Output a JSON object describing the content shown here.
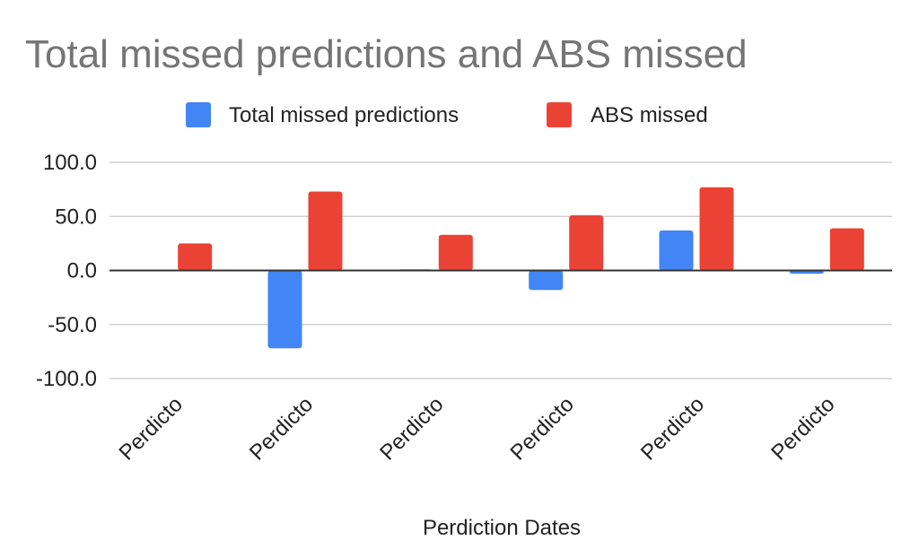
{
  "chart_data": {
    "type": "bar",
    "title": "Total missed predictions and ABS missed",
    "xlabel": "Perdiction Dates",
    "ylabel": "",
    "categories": [
      "Perdicto",
      "Perdicto",
      "Perdicto",
      "Perdicto",
      "Perdicto",
      "Perdicto"
    ],
    "series": [
      {
        "name": "Total missed predictions",
        "color": "#4285f4",
        "values": [
          0,
          -72,
          1,
          -18,
          37,
          -3
        ]
      },
      {
        "name": "ABS missed",
        "color": "#ea4335",
        "values": [
          25,
          73,
          33,
          51,
          77,
          39
        ]
      }
    ],
    "ylim": [
      -100,
      100
    ],
    "yticks": [
      "100.0",
      "50.0",
      "0.0",
      "-50.0",
      "-100.0"
    ],
    "ytick_values": [
      100,
      50,
      0,
      -50,
      -100
    ],
    "grid": true,
    "legend_position": "top-center"
  }
}
